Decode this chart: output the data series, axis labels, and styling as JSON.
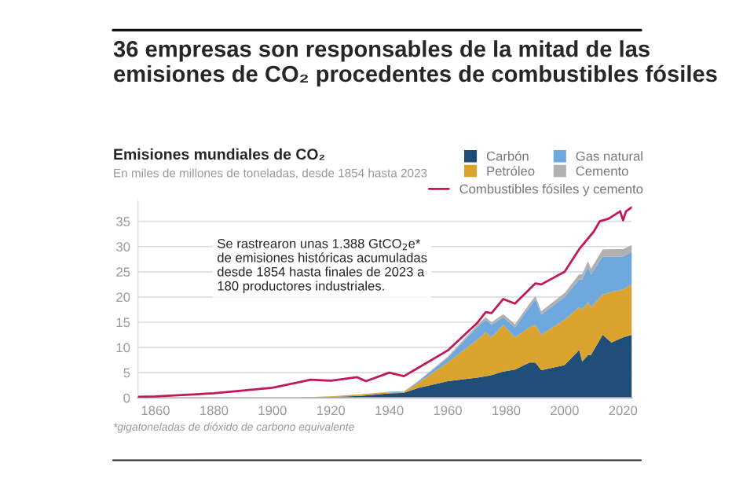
{
  "chart_data": {
    "type": "area",
    "stacked": true,
    "title": "36 empresas son responsables de la mitad de las emisiones de CO₂ procedentes de combustibles fósiles",
    "subtitle": "Emisiones mundiales de CO₂",
    "annotations": [
      "En miles de millones de toneladas, desde 1854 hasta 2023",
      "Se rastrearon unas 1.388 GtCO$_{2}$e*\nde emisiones históricas acumuladas\ndesde 1854 hasta finales de 2023 a\n180 productores industriales.",
      "*gigatoneladas de dióxido de carbono equivalente"
    ],
    "x": [
      1910,
      1920,
      1930,
      1940,
      1945,
      1950,
      1960,
      1970,
      1973,
      1975,
      1979,
      1983,
      1988,
      1990,
      1992,
      2000,
      2005,
      2006,
      2008,
      2009,
      2013,
      2016,
      2020,
      2023
    ],
    "series": [
      {
        "name": "Carbón",
        "color": "#1f4e79",
        "values": [
          0.1,
          0.2,
          0.4,
          0.9,
          1.0,
          2.0,
          3.3,
          4.0,
          4.3,
          4.5,
          5.2,
          5.6,
          7.0,
          7.0,
          5.5,
          6.5,
          9.5,
          7.2,
          8.5,
          8.5,
          12.5,
          11.0,
          12.0,
          12.5
        ]
      },
      {
        "name": "Petróleo",
        "color": "#d9a32e",
        "values": [
          0,
          0.1,
          0.3,
          0.2,
          0.2,
          1.0,
          3.7,
          7.5,
          8.7,
          7.5,
          9.3,
          6.4,
          7.0,
          7.5,
          7.0,
          9.0,
          8.5,
          10.3,
          10.5,
          9.5,
          8.0,
          10.0,
          9.5,
          10.0
        ]
      },
      {
        "name": "Gas natural",
        "color": "#6fa8dc",
        "values": [
          0,
          0,
          0,
          0.1,
          0.1,
          0.3,
          1.0,
          2.5,
          2.5,
          2.5,
          1.5,
          2.0,
          4.0,
          5.0,
          4.0,
          4.5,
          5.5,
          6.0,
          7.0,
          6.5,
          7.5,
          7.0,
          6.5,
          6.5
        ]
      },
      {
        "name": "Cemento",
        "color": "#b0b0b0",
        "values": [
          0,
          0,
          0,
          0,
          0,
          0.1,
          0.2,
          0.4,
          0.5,
          0.5,
          0.6,
          0.6,
          0.7,
          0.7,
          0.7,
          0.8,
          1.0,
          1.0,
          1.1,
          1.1,
          1.4,
          1.5,
          1.5,
          1.3
        ]
      },
      {
        "name": "Combustibles fósiles y cemento",
        "type": "line",
        "color": "#c2185b",
        "x": [
          1854,
          1860,
          1880,
          1900,
          1910,
          1913,
          1920,
          1929,
          1932,
          1940,
          1945,
          1950,
          1960,
          1970,
          1973,
          1975,
          1979,
          1983,
          1990,
          1992,
          2000,
          2005,
          2010,
          2012,
          2015,
          2019,
          2020,
          2021,
          2023
        ],
        "values": [
          0.2,
          0.3,
          0.9,
          2.0,
          3.2,
          3.6,
          3.4,
          4.1,
          3.3,
          5.0,
          4.3,
          6.0,
          9.4,
          14.8,
          17.0,
          16.8,
          19.6,
          18.7,
          22.7,
          22.5,
          25.0,
          29.5,
          33.0,
          35.0,
          35.5,
          37.0,
          35.2,
          37.0,
          37.8
        ]
      }
    ],
    "xlim": [
      1854,
      2023
    ],
    "xticks": [
      1860,
      1880,
      1900,
      1920,
      1940,
      1960,
      1980,
      2000,
      2020
    ],
    "ylim": [
      0,
      39
    ],
    "yticks": [
      0,
      5,
      10,
      15,
      20,
      25,
      30,
      35
    ],
    "grid": "y",
    "legend": "top right"
  }
}
